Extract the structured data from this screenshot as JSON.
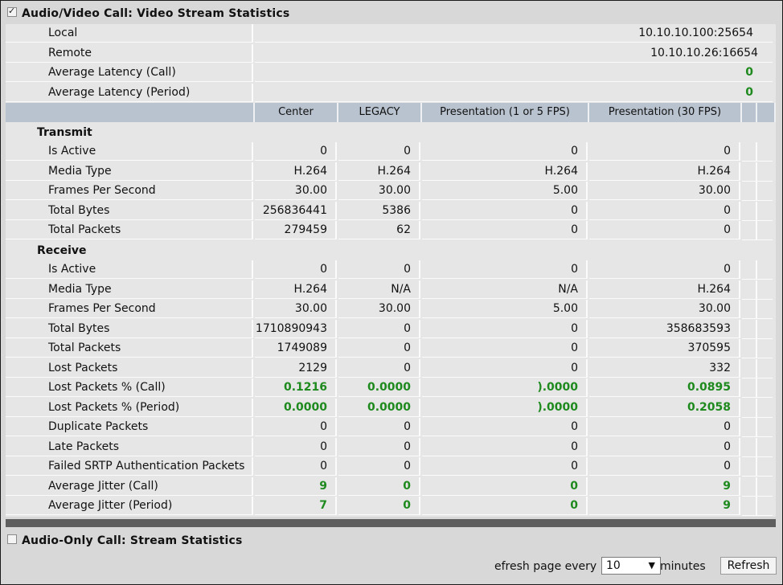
{
  "video_section": {
    "title": "Audio/Video Call: Video Stream Statistics",
    "checked": true
  },
  "summary": {
    "local_label": "Local",
    "local_value": "10.10.10.100:25654",
    "remote_label": "Remote",
    "remote_value": "10.10.10.26:16654",
    "avg_latency_call_label": "Average Latency (Call)",
    "avg_latency_call_value": "0",
    "avg_latency_period_label": "Average Latency (Period)",
    "avg_latency_period_value": "0"
  },
  "columns": [
    "Center",
    "LEGACY",
    "Presentation (1 or 5 FPS)",
    "Presentation (30 FPS)"
  ],
  "transmit": {
    "title": "Transmit",
    "rows": [
      {
        "label": "Is Active",
        "values": [
          "0",
          "0",
          "0",
          "0"
        ],
        "green": false
      },
      {
        "label": "Media Type",
        "values": [
          "H.264",
          "H.264",
          "H.264",
          "H.264"
        ],
        "green": false
      },
      {
        "label": "Frames Per Second",
        "values": [
          "30.00",
          "30.00",
          "5.00",
          "30.00"
        ],
        "green": false
      },
      {
        "label": "Total Bytes",
        "values": [
          "256836441",
          "5386",
          "0",
          "0"
        ],
        "green": false
      },
      {
        "label": "Total Packets",
        "values": [
          "279459",
          "62",
          "0",
          "0"
        ],
        "green": false
      }
    ]
  },
  "receive": {
    "title": "Receive",
    "rows": [
      {
        "label": "Is Active",
        "values": [
          "0",
          "0",
          "0",
          "0"
        ],
        "green": false
      },
      {
        "label": "Media Type",
        "values": [
          "H.264",
          "N/A",
          "N/A",
          "H.264"
        ],
        "green": false
      },
      {
        "label": "Frames Per Second",
        "values": [
          "30.00",
          "30.00",
          "5.00",
          "30.00"
        ],
        "green": false
      },
      {
        "label": "Total Bytes",
        "values": [
          "1710890943",
          "0",
          "0",
          "358683593"
        ],
        "green": false
      },
      {
        "label": "Total Packets",
        "values": [
          "1749089",
          "0",
          "0",
          "370595"
        ],
        "green": false
      },
      {
        "label": "Lost Packets",
        "values": [
          "2129",
          "0",
          "0",
          "332"
        ],
        "green": false
      },
      {
        "label": "Lost Packets % (Call)",
        "values": [
          "0.1216",
          "0.0000",
          ").0000",
          "0.0895"
        ],
        "green": true
      },
      {
        "label": "Lost Packets % (Period)",
        "values": [
          "0.0000",
          "0.0000",
          ").0000",
          "0.2058"
        ],
        "green": true
      },
      {
        "label": "Duplicate Packets",
        "values": [
          "0",
          "0",
          "0",
          "0"
        ],
        "green": false
      },
      {
        "label": "Late Packets",
        "values": [
          "0",
          "0",
          "0",
          "0"
        ],
        "green": false
      },
      {
        "label": "Failed SRTP Authentication Packets",
        "values": [
          "0",
          "0",
          "0",
          "0"
        ],
        "green": false
      },
      {
        "label": "Average Jitter (Call)",
        "values": [
          "9",
          "0",
          "0",
          "9"
        ],
        "green": true
      },
      {
        "label": "Average Jitter (Period)",
        "values": [
          "7",
          "0",
          "0",
          "9"
        ],
        "green": true
      }
    ]
  },
  "audio_section": {
    "title": "Audio-Only Call: Stream Statistics",
    "checked": false
  },
  "footer": {
    "refresh_prefix": "efresh page every",
    "interval_value": "10",
    "refresh_suffix": "minutes",
    "refresh_button": "Refresh"
  },
  "colors": {
    "header_bg": "#b9c3cf",
    "value_green": "#1e8a1e",
    "divider_bar": "#5e5e5e"
  },
  "icons": {
    "select_arrow": "triangle-down-icon"
  }
}
